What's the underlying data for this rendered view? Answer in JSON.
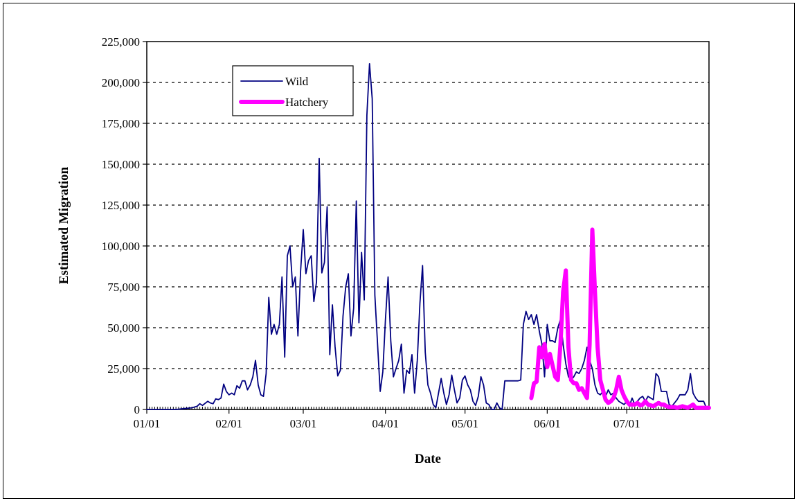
{
  "chart_data": {
    "type": "line",
    "title": "",
    "xlabel": "Date",
    "ylabel": "Estimated Migration",
    "ylim": [
      0,
      225000
    ],
    "xlim_day": [
      1,
      213
    ],
    "x_unit": "day of year",
    "y_ticks": [
      0,
      25000,
      50000,
      75000,
      100000,
      125000,
      150000,
      175000,
      200000,
      225000
    ],
    "y_tick_labels": [
      "0",
      "25,000",
      "50,000",
      "75,000",
      "100,000",
      "125,000",
      "150,000",
      "175,000",
      "200,000",
      "225,000"
    ],
    "x_ticks": [
      1,
      32,
      60,
      91,
      121,
      152,
      182
    ],
    "x_tick_labels": [
      "01/01",
      "02/01",
      "03/01",
      "04/01",
      "05/01",
      "06/01",
      "07/01"
    ],
    "grid": "horizontal dashed",
    "legend_position": "top-left",
    "series": [
      {
        "name": "Wild",
        "color": "#000080",
        "points": [
          [
            1,
            0
          ],
          [
            12,
            0
          ],
          [
            15,
            500
          ],
          [
            18,
            1000
          ],
          [
            20,
            2000
          ],
          [
            21,
            3500
          ],
          [
            22,
            2500
          ],
          [
            24,
            5000
          ],
          [
            25,
            4000
          ],
          [
            26,
            3500
          ],
          [
            27,
            6500
          ],
          [
            28,
            6000
          ],
          [
            29,
            7000
          ],
          [
            30,
            15500
          ],
          [
            31,
            11000
          ],
          [
            32,
            9000
          ],
          [
            33,
            10000
          ],
          [
            34,
            9000
          ],
          [
            35,
            14500
          ],
          [
            36,
            13000
          ],
          [
            37,
            17500
          ],
          [
            38,
            17500
          ],
          [
            39,
            12000
          ],
          [
            40,
            15000
          ],
          [
            41,
            20000
          ],
          [
            42,
            30000
          ],
          [
            43,
            15000
          ],
          [
            44,
            9000
          ],
          [
            45,
            8000
          ],
          [
            46,
            22000
          ],
          [
            47,
            68500
          ],
          [
            48,
            46000
          ],
          [
            49,
            52000
          ],
          [
            50,
            46000
          ],
          [
            51,
            52000
          ],
          [
            52,
            81000
          ],
          [
            53,
            32000
          ],
          [
            54,
            94000
          ],
          [
            55,
            100000
          ],
          [
            56,
            75000
          ],
          [
            57,
            81000
          ],
          [
            58,
            45000
          ],
          [
            59,
            85000
          ],
          [
            60,
            110000
          ],
          [
            61,
            83000
          ],
          [
            62,
            91000
          ],
          [
            63,
            94000
          ],
          [
            64,
            66000
          ],
          [
            65,
            78000
          ],
          [
            66,
            153500
          ],
          [
            67,
            83500
          ],
          [
            68,
            90000
          ],
          [
            69,
            124000
          ],
          [
            70,
            33500
          ],
          [
            71,
            64000
          ],
          [
            72,
            38500
          ],
          [
            73,
            20500
          ],
          [
            74,
            24000
          ],
          [
            75,
            57000
          ],
          [
            76,
            75000
          ],
          [
            77,
            83000
          ],
          [
            78,
            45000
          ],
          [
            79,
            62000
          ],
          [
            80,
            127500
          ],
          [
            81,
            53000
          ],
          [
            82,
            96000
          ],
          [
            83,
            67000
          ],
          [
            84,
            180000
          ],
          [
            85,
            211500
          ],
          [
            86,
            190000
          ],
          [
            87,
            70000
          ],
          [
            89,
            11000
          ],
          [
            90,
            23000
          ],
          [
            91,
            55000
          ],
          [
            92,
            81000
          ],
          [
            93,
            42000
          ],
          [
            94,
            20000
          ],
          [
            95,
            25000
          ],
          [
            96,
            30000
          ],
          [
            97,
            40000
          ],
          [
            98,
            10000
          ],
          [
            99,
            24000
          ],
          [
            100,
            22000
          ],
          [
            101,
            33500
          ],
          [
            102,
            10000
          ],
          [
            103,
            30000
          ],
          [
            104,
            65000
          ],
          [
            105,
            88000
          ],
          [
            106,
            35000
          ],
          [
            107,
            15000
          ],
          [
            108,
            10000
          ],
          [
            109,
            3000
          ],
          [
            110,
            1000
          ],
          [
            112,
            19000
          ],
          [
            113,
            10000
          ],
          [
            114,
            3000
          ],
          [
            115,
            9000
          ],
          [
            116,
            21000
          ],
          [
            117,
            12000
          ],
          [
            118,
            4000
          ],
          [
            119,
            7000
          ],
          [
            120,
            18000
          ],
          [
            121,
            20500
          ],
          [
            122,
            15000
          ],
          [
            123,
            12000
          ],
          [
            124,
            5000
          ],
          [
            125,
            2500
          ],
          [
            126,
            8000
          ],
          [
            127,
            20000
          ],
          [
            128,
            15000
          ],
          [
            129,
            4000
          ],
          [
            130,
            3000
          ],
          [
            131,
            0
          ],
          [
            132,
            0
          ],
          [
            133,
            4000
          ],
          [
            134,
            1000
          ],
          [
            135,
            0
          ],
          [
            136,
            17500
          ],
          [
            141,
            17500
          ],
          [
            142,
            18000
          ],
          [
            143,
            52000
          ],
          [
            144,
            60000
          ],
          [
            145,
            55000
          ],
          [
            146,
            58000
          ],
          [
            147,
            52000
          ],
          [
            148,
            58000
          ],
          [
            149,
            48000
          ],
          [
            150,
            40000
          ],
          [
            151,
            20000
          ],
          [
            152,
            52000
          ],
          [
            153,
            42000
          ],
          [
            154,
            42000
          ],
          [
            155,
            41000
          ],
          [
            156,
            50000
          ],
          [
            157,
            55000
          ],
          [
            158,
            40000
          ],
          [
            159,
            28000
          ],
          [
            160,
            20000
          ],
          [
            161,
            18000
          ],
          [
            162,
            20000
          ],
          [
            163,
            23000
          ],
          [
            164,
            22000
          ],
          [
            165,
            25000
          ],
          [
            166,
            30000
          ],
          [
            167,
            38000
          ],
          [
            168,
            30000
          ],
          [
            169,
            25000
          ],
          [
            170,
            15000
          ],
          [
            171,
            10000
          ],
          [
            172,
            9000
          ],
          [
            173,
            11000
          ],
          [
            174,
            8000
          ],
          [
            175,
            12000
          ],
          [
            176,
            9000
          ],
          [
            177,
            10000
          ],
          [
            178,
            7000
          ],
          [
            179,
            5000
          ],
          [
            180,
            4000
          ],
          [
            181,
            3000
          ],
          [
            182,
            5000
          ],
          [
            183,
            2000
          ],
          [
            184,
            7000
          ],
          [
            185,
            3000
          ],
          [
            186,
            5000
          ],
          [
            187,
            7000
          ],
          [
            188,
            8000
          ],
          [
            189,
            5000
          ],
          [
            190,
            8000
          ],
          [
            191,
            7000
          ],
          [
            192,
            6000
          ],
          [
            193,
            22000
          ],
          [
            194,
            20000
          ],
          [
            195,
            11000
          ],
          [
            196,
            11000
          ],
          [
            197,
            11000
          ],
          [
            198,
            3000
          ],
          [
            199,
            2000
          ],
          [
            200,
            4000
          ],
          [
            201,
            6000
          ],
          [
            202,
            9000
          ],
          [
            203,
            9000
          ],
          [
            204,
            9000
          ],
          [
            205,
            12000
          ],
          [
            206,
            22000
          ],
          [
            207,
            10000
          ],
          [
            208,
            7000
          ],
          [
            209,
            5000
          ],
          [
            210,
            5000
          ],
          [
            211,
            5000
          ],
          [
            212,
            1000
          ],
          [
            213,
            1000
          ]
        ]
      },
      {
        "name": "Hatchery",
        "color": "#ff00ff",
        "points": [
          [
            146,
            7000
          ],
          [
            147,
            16000
          ],
          [
            148,
            17000
          ],
          [
            149,
            38000
          ],
          [
            150,
            32000
          ],
          [
            151,
            40000
          ],
          [
            152,
            26000
          ],
          [
            153,
            34000
          ],
          [
            154,
            27000
          ],
          [
            155,
            20000
          ],
          [
            156,
            18000
          ],
          [
            157,
            40000
          ],
          [
            158,
            72000
          ],
          [
            159,
            85000
          ],
          [
            160,
            38000
          ],
          [
            161,
            18000
          ],
          [
            162,
            16000
          ],
          [
            163,
            16000
          ],
          [
            164,
            12000
          ],
          [
            165,
            13000
          ],
          [
            166,
            10000
          ],
          [
            167,
            7000
          ],
          [
            168,
            40000
          ],
          [
            169,
            110000
          ],
          [
            170,
            72000
          ],
          [
            171,
            38000
          ],
          [
            172,
            18000
          ],
          [
            173,
            12000
          ],
          [
            174,
            6000
          ],
          [
            175,
            4000
          ],
          [
            176,
            5000
          ],
          [
            177,
            7000
          ],
          [
            178,
            12000
          ],
          [
            179,
            20000
          ],
          [
            180,
            12000
          ],
          [
            181,
            8000
          ],
          [
            182,
            5000
          ],
          [
            183,
            3000
          ],
          [
            185,
            3000
          ],
          [
            186,
            4000
          ],
          [
            187,
            2500
          ],
          [
            188,
            3000
          ],
          [
            189,
            5000
          ],
          [
            190,
            3000
          ],
          [
            192,
            2000
          ],
          [
            193,
            3000
          ],
          [
            194,
            4000
          ],
          [
            195,
            3000
          ],
          [
            196,
            3000
          ],
          [
            197,
            2000
          ],
          [
            198,
            1500
          ],
          [
            200,
            1500
          ],
          [
            201,
            1000
          ],
          [
            202,
            1500
          ],
          [
            203,
            2000
          ],
          [
            204,
            1500
          ],
          [
            205,
            1000
          ],
          [
            206,
            2000
          ],
          [
            207,
            3000
          ],
          [
            208,
            1000
          ],
          [
            209,
            1000
          ],
          [
            210,
            1000
          ],
          [
            211,
            1000
          ],
          [
            212,
            1000
          ],
          [
            213,
            1000
          ]
        ]
      }
    ]
  }
}
